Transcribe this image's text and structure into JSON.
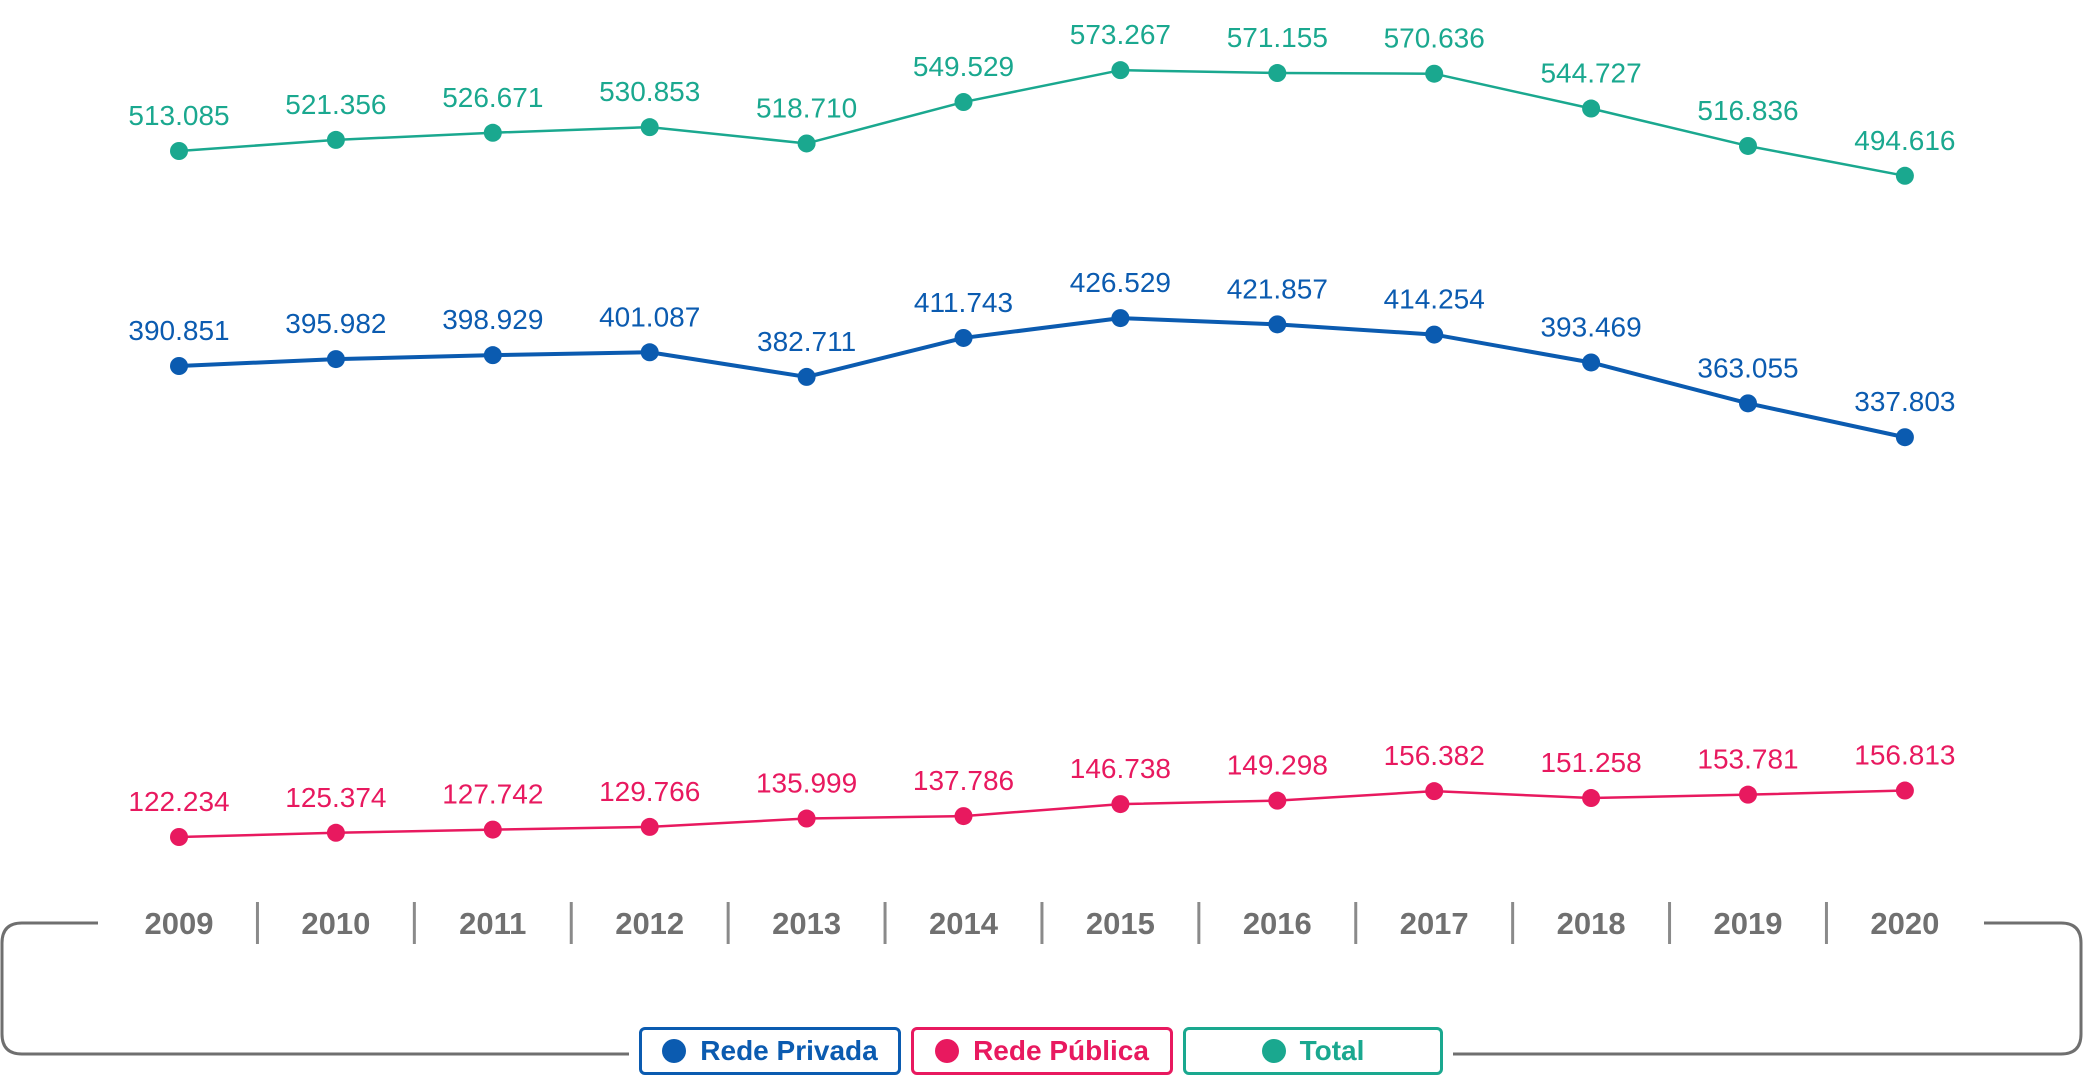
{
  "chart_data": {
    "type": "line",
    "categories": [
      "2009",
      "2010",
      "2011",
      "2012",
      "2013",
      "2014",
      "2015",
      "2016",
      "2017",
      "2018",
      "2019",
      "2020"
    ],
    "series": [
      {
        "key": "total",
        "name": "Total",
        "color": "#1aa88f",
        "values": [
          513085,
          521356,
          526671,
          530853,
          518710,
          549529,
          573267,
          571155,
          570636,
          544727,
          516836,
          494616
        ],
        "labels": [
          "513.085",
          "521.356",
          "526.671",
          "530.853",
          "518.710",
          "549.529",
          "573.267",
          "571.155",
          "570.636",
          "544.727",
          "516.836",
          "494.616"
        ]
      },
      {
        "key": "privada",
        "name": "Rede Privada",
        "color": "#0b5bb0",
        "values": [
          390851,
          395982,
          398929,
          401087,
          382711,
          411743,
          426529,
          421857,
          414254,
          393469,
          363055,
          337803
        ],
        "labels": [
          "390.851",
          "395.982",
          "398.929",
          "401.087",
          "382.711",
          "411.743",
          "426.529",
          "421.857",
          "414.254",
          "393.469",
          "363.055",
          "337.803"
        ]
      },
      {
        "key": "publica",
        "name": "Rede Pública",
        "color": "#e8195f",
        "values": [
          122234,
          125374,
          127742,
          129766,
          135999,
          137786,
          146738,
          149298,
          156382,
          151258,
          153781,
          156813
        ],
        "labels": [
          "122.234",
          "125.374",
          "127.742",
          "129.766",
          "135.999",
          "137.786",
          "146.738",
          "149.298",
          "156.382",
          "151.258",
          "153.781",
          "156.813"
        ]
      }
    ],
    "legend": [
      "Rede Privada",
      "Rede Pública",
      "Total"
    ],
    "legend_placement": "bottom",
    "grid": false
  }
}
